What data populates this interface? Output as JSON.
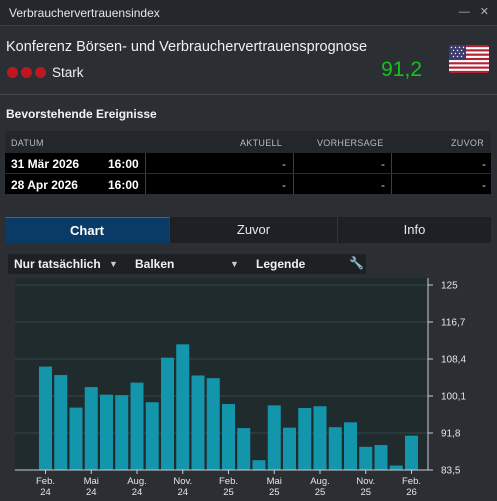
{
  "window": {
    "title": "Verbrauchervertrauensindex"
  },
  "header": {
    "event_name": "Konferenz Börsen- und Verbrauchervertrauensprognose",
    "volatility_label": "Stark",
    "value": "91,2",
    "volatility_color": "#c0171e",
    "value_color": "#15c21c",
    "flag": "us-flag-icon"
  },
  "upcoming": {
    "title": "Bevorstehende Ereignisse",
    "columns": [
      "DATUM",
      "AKTUELL",
      "VORHERSAGE",
      "ZUVOR"
    ],
    "rows": [
      {
        "date": "31 Mär 2026",
        "time": "16:00",
        "actual": "-",
        "forecast": "-",
        "previous": "-"
      },
      {
        "date": "28 Apr 2026",
        "time": "16:00",
        "actual": "-",
        "forecast": "-",
        "previous": "-"
      }
    ]
  },
  "tabs": [
    {
      "label": "Chart",
      "active": true
    },
    {
      "label": "Zuvor",
      "active": false
    },
    {
      "label": "Info",
      "active": false
    }
  ],
  "toolbar": {
    "filter_label": "Nur tatsächlich",
    "type_label": "Balken",
    "legend_label": "Legende",
    "wrench": "wrench-icon"
  },
  "chart_data": {
    "type": "bar",
    "bar_color": "#1396ac",
    "ylim": [
      83.5,
      125
    ],
    "yticks": [
      "125",
      "116,7",
      "108,4",
      "100,1",
      "91,8",
      "83,5"
    ],
    "xticks": [
      {
        "l1": "Feb.",
        "l2": "24"
      },
      {
        "l1": "Mai",
        "l2": "24"
      },
      {
        "l1": "Aug.",
        "l2": "24"
      },
      {
        "l1": "Nov.",
        "l2": "24"
      },
      {
        "l1": "Feb.",
        "l2": "25"
      },
      {
        "l1": "Mai",
        "l2": "25"
      },
      {
        "l1": "Aug.",
        "l2": "25"
      },
      {
        "l1": "Nov.",
        "l2": "25"
      },
      {
        "l1": "Feb.",
        "l2": "26"
      }
    ],
    "values": [
      106.7,
      104.8,
      97.5,
      102.1,
      100.4,
      100.3,
      103.1,
      98.7,
      108.7,
      111.7,
      104.7,
      104.1,
      98.3,
      92.9,
      85.7,
      98.0,
      93.0,
      97.4,
      97.8,
      93.1,
      94.2,
      88.7,
      89.1,
      84.5,
      91.2
    ]
  }
}
